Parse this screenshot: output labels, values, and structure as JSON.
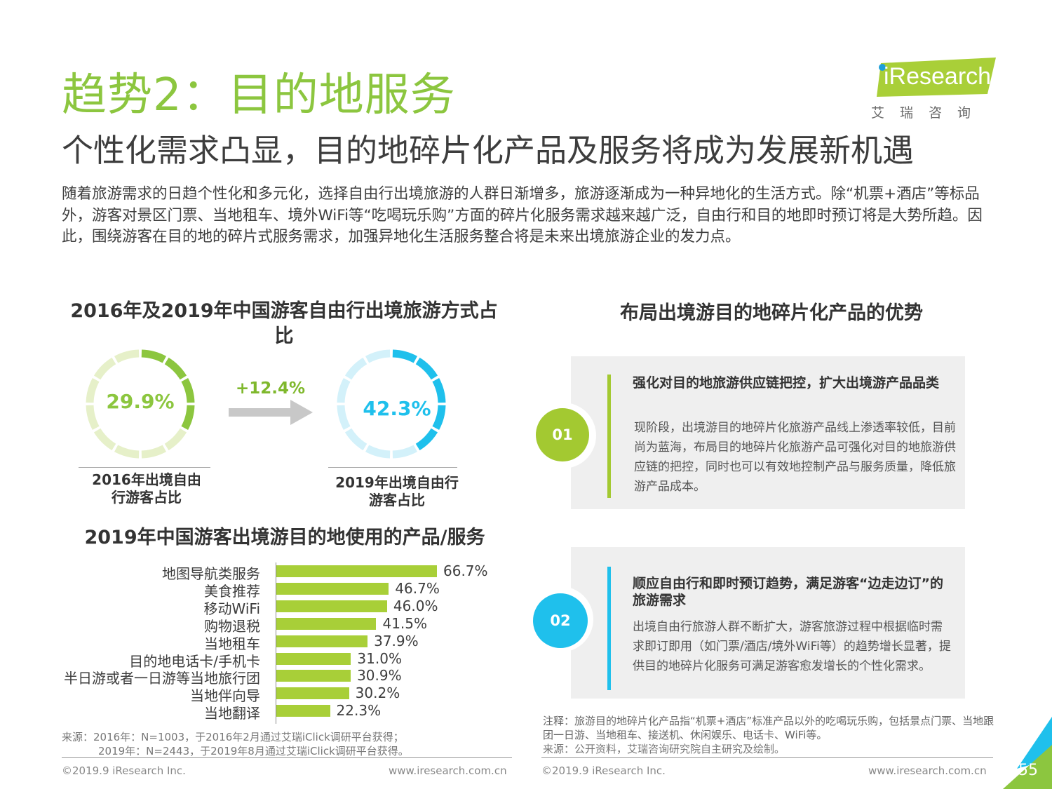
{
  "page": {
    "title": "趋势2：目的地服务",
    "subtitle": "个性化需求凸显，目的地碎片化产品及服务将成为发展新机遇",
    "intro": "随着旅游需求的日趋个性化和多元化，选择自由行出境旅游的人群日渐增多，旅游逐渐成为一种异地化的生活方式。除“机票+酒店”等标品外，游客对景区门票、当地租车、境外WiFi等“吃喝玩乐购”方面的碎片化服务需求越来越广泛，自由行和目的地即时预订将是大势所趋。因此，围绕游客在目的地的碎片式服务需求，加强异地化生活服务整合将是未来出境旅游企业的发力点。",
    "page_number": "55"
  },
  "logo": {
    "text": "iResearch",
    "subtext": "艾瑞咨询"
  },
  "colors": {
    "green": "#8cc63f",
    "green_light": "#e6f0c9",
    "blue": "#1fc0ec",
    "blue_light": "#d3f1fa",
    "bar": "#a8cf38",
    "arrow": "#c8c8c8"
  },
  "donut_section": {
    "heading": "2016年及2019年中国游客自由行出境旅游方式占比",
    "diff_label": "+12.4%"
  },
  "bar_section": {
    "heading": "2019年中国游客出境游目的地使用的产品/服务"
  },
  "chart_data": [
    {
      "type": "pie",
      "subtype": "donut",
      "label": "2016年出境自由行游客占比",
      "value": 29.9,
      "value_label": "29.9%",
      "color": "#8cc63f"
    },
    {
      "type": "pie",
      "subtype": "donut",
      "label": "2019年出境自由行游客占比",
      "value": 42.3,
      "value_label": "42.3%",
      "color": "#1fc0ec"
    },
    {
      "type": "bar",
      "orientation": "horizontal",
      "categories": [
        "地图导航类服务",
        "美食推荐",
        "移动WiFi",
        "购物退税",
        "当地租车",
        "目的地电话卡/手机卡",
        "半日游或者一日游等当地旅行团",
        "当地伴向导",
        "当地翻译"
      ],
      "values": [
        66.7,
        46.7,
        46.0,
        41.5,
        37.9,
        31.0,
        30.9,
        30.2,
        22.3
      ],
      "value_labels": [
        "66.7%",
        "46.7%",
        "46.0%",
        "41.5%",
        "37.9%",
        "31.0%",
        "30.9%",
        "30.2%",
        "22.3%"
      ],
      "xlim": [
        0,
        100
      ],
      "grid": false
    }
  ],
  "right_section": {
    "heading": "布局出境游目的地碎片化产品的优势",
    "cards": [
      {
        "number": "01",
        "title": "强化对目的地旅游供应链把控，扩大出境游产品品类",
        "body": "现阶段，出境游目的地碎片化旅游产品线上渗透率较低，目前尚为蓝海，布局目的地碎片化旅游产品可强化对目的地旅游供应链的把控，同时也可以有效地控制产品与服务质量，降低旅游产品成本。"
      },
      {
        "number": "02",
        "title": "顺应自由行和即时预订趋势，满足游客“边走边订”的旅游需求",
        "body": "出境自由行旅游人群不断扩大，游客旅游过程中根据临时需求即订即用（如门票/酒店/境外WiFi等）的趋势增长显著，提供目的地碎片化服务可满足游客愈发增长的个性化需求。"
      }
    ]
  },
  "sources": {
    "left_line1": "来源：2016年：N=1003，于2016年2月通过艾瑞iClick调研平台获得；",
    "left_line2": "2019年：N=2443，于2019年8月通过艾瑞iClick调研平台获得。",
    "right_note": "注释：旅游目的地碎片化产品指“机票+酒店”标准产品以外的吃喝玩乐购，包括景点门票、当地跟团一日游、当地租车、接送机、休闲娱乐、电话卡、WiFi等。",
    "right_source": "来源：公开资料，艾瑞咨询研究院自主研究及绘制。"
  },
  "footer": {
    "copyright": "©2019.9 iResearch Inc.",
    "url": "www.iresearch.com.cn"
  }
}
